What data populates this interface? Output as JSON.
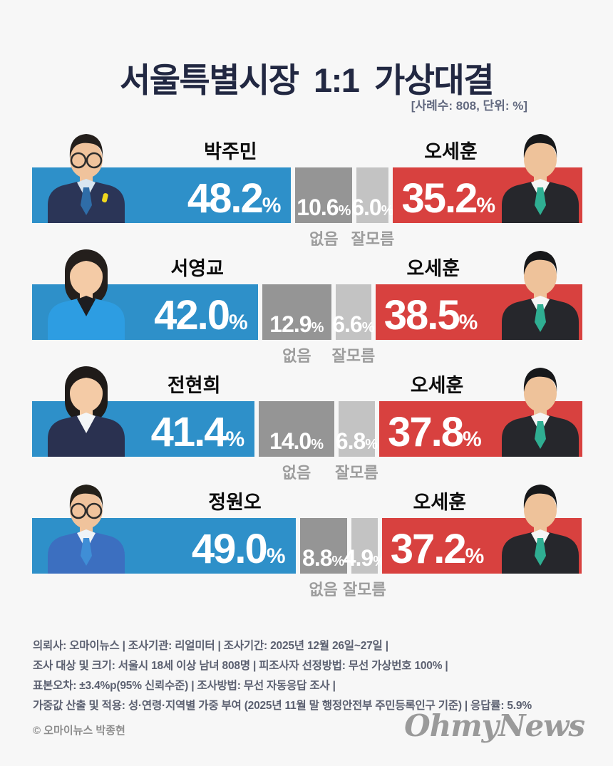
{
  "page": {
    "title": "서울특별시장 1:1 가상대결",
    "subtitle": "[사례수: 808, 단위: %]",
    "credit": "© 오마이뉴스 박종현",
    "logo_text": "OhmyNews"
  },
  "labels": {
    "none": "없음",
    "dont_know": "잘모름",
    "percent": "%"
  },
  "chart_data": {
    "type": "bar",
    "title": "서울특별시장 1:1 가상대결",
    "sample_size": 808,
    "unit": "%",
    "stack_order": [
      "left_pct",
      "none_pct",
      "dont_know_pct",
      "right_pct"
    ],
    "categories": [
      "박주민 vs 오세훈",
      "서영교 vs 오세훈",
      "전현희 vs 오세훈",
      "정원오 vs 오세훈"
    ],
    "rows": [
      {
        "left_name": "박주민",
        "left_pct": 48.2,
        "none_pct": 10.6,
        "dont_know_pct": 6.0,
        "right_name": "오세훈",
        "right_pct": 35.2
      },
      {
        "left_name": "서영교",
        "left_pct": 42.0,
        "none_pct": 12.9,
        "dont_know_pct": 6.6,
        "right_name": "오세훈",
        "right_pct": 38.5
      },
      {
        "left_name": "전현희",
        "left_pct": 41.4,
        "none_pct": 14.0,
        "dont_know_pct": 6.8,
        "right_name": "오세훈",
        "right_pct": 37.8
      },
      {
        "left_name": "정원오",
        "left_pct": 49.0,
        "none_pct": 8.8,
        "dont_know_pct": 4.9,
        "right_name": "오세훈",
        "right_pct": 37.2
      }
    ]
  },
  "footer": {
    "lines": [
      "의뢰사: 오마이뉴스 | 조사기관: 리얼미터 | 조사기간: 2025년 12월 26일~27일 |",
      "조사 대상 및 크기: 서울시 18세 이상 남녀 808명 | 피조사자 선정방법: 무선 가상번호 100% |",
      "표본오차: ±3.4%p(95% 신뢰수준) | 조사방법: 무선 자동응답 조사 |",
      "가중값 산출 및 적용: 성·연령·지역별 가중 부여 (2025년 11월 말 행정안전부 주민등록인구 기준) | 응답률: 5.9%"
    ]
  },
  "colors": {
    "left_bar": "#2e90c9",
    "right_bar": "#d8413f",
    "none_bar": "#959595",
    "dont_know_bar": "#c3c3c3",
    "title_text": "#222842",
    "name_text": "#0d0d0d",
    "gray_label_text": "#9c9c9c",
    "footer_text": "#5b6070",
    "background": "#f7f7f7"
  }
}
